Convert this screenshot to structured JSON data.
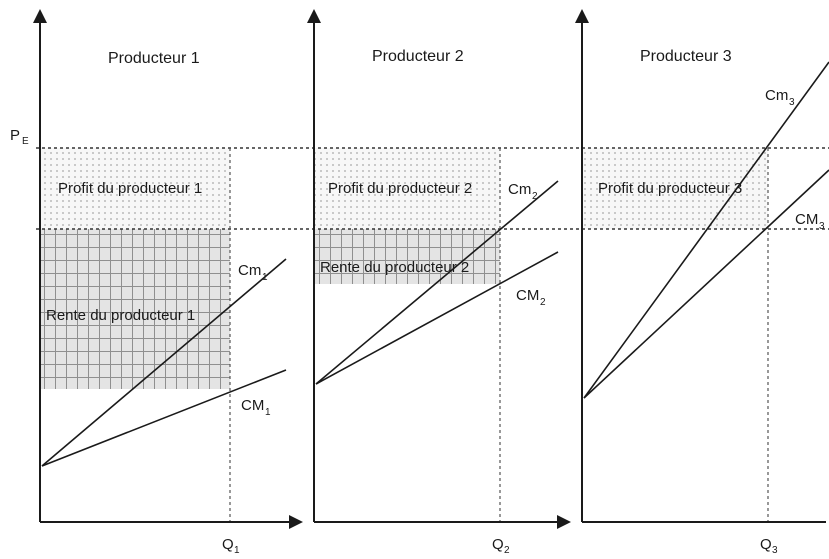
{
  "price_label": "P",
  "price_label_sub": "E",
  "panels": [
    {
      "title": "Producteur 1",
      "profit_label": "Profit du producteur 1",
      "rente_label": "Rente du producteur 1",
      "cm_label": "Cm",
      "cm_sub": "1",
      "cmoy_label": "CM",
      "cmoy_sub": "1",
      "q_label": "Q",
      "q_sub": "1"
    },
    {
      "title": "Producteur 2",
      "profit_label": "Profit du producteur 2",
      "rente_label": "Rente du producteur 2",
      "cm_label": "Cm",
      "cm_sub": "2",
      "cmoy_label": "CM",
      "cmoy_sub": "2",
      "q_label": "Q",
      "q_sub": "2"
    },
    {
      "title": "Producteur 3",
      "profit_label": "Profit du producteur 3",
      "cm_label": "Cm",
      "cm_sub": "3",
      "cmoy_label": "CM",
      "cmoy_sub": "3",
      "q_label": "Q",
      "q_sub": "3"
    }
  ],
  "colors": {
    "ink": "#1a1a1a",
    "dots": "#b8b8b8",
    "grid_fill": "#e6e6e6",
    "grid_line": "#9a9a9a"
  }
}
